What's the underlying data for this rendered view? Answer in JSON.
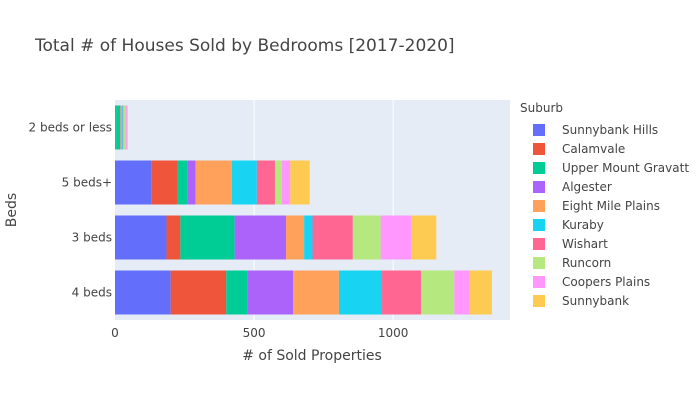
{
  "chart_data": {
    "type": "bar",
    "orientation": "horizontal",
    "barmode": "stack",
    "title": "Total # of Houses Sold by Bedrooms [2017-2020]",
    "xlabel": "# of Sold Properties",
    "ylabel": "Beds",
    "xlim": [
      0,
      1420
    ],
    "xticks": [
      0,
      500,
      1000
    ],
    "categories": [
      "4 beds",
      "3 beds",
      "5 beds+",
      "2 beds or less"
    ],
    "grid": true,
    "legend_title": "Suburb",
    "legend_position": "right",
    "series": [
      {
        "name": "Sunnybank Hills",
        "color": "#636efa",
        "values": [
          200,
          185,
          130,
          3
        ]
      },
      {
        "name": "Calamvale",
        "color": "#ef553b",
        "values": [
          200,
          50,
          95,
          1
        ]
      },
      {
        "name": "Upper Mount Gravatt",
        "color": "#00cc96",
        "values": [
          75,
          195,
          35,
          15
        ]
      },
      {
        "name": "Algester",
        "color": "#ab63fa",
        "values": [
          165,
          185,
          30,
          1
        ]
      },
      {
        "name": "Eight Mile Plains",
        "color": "#ffa15a",
        "values": [
          165,
          65,
          130,
          5
        ]
      },
      {
        "name": "Kuraby",
        "color": "#19d3f3",
        "values": [
          155,
          30,
          90,
          3
        ]
      },
      {
        "name": "Wishart",
        "color": "#ff6692",
        "values": [
          140,
          145,
          65,
          2
        ]
      },
      {
        "name": "Runcorn",
        "color": "#b6e880",
        "values": [
          120,
          100,
          25,
          8
        ]
      },
      {
        "name": "Coopers Plains",
        "color": "#ff97ff",
        "values": [
          55,
          110,
          30,
          5
        ]
      },
      {
        "name": "Sunnybank",
        "color": "#fecb52",
        "values": [
          80,
          90,
          70,
          3
        ]
      }
    ]
  },
  "colors": {
    "plot_background": "#e5ecf6",
    "gridline": "#ffffff",
    "text": "#444444"
  }
}
